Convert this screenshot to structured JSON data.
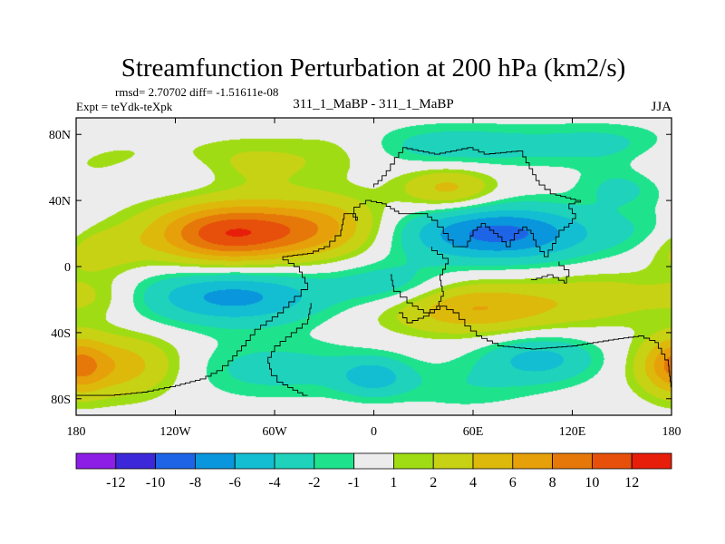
{
  "chart_data": {
    "type": "heatmap",
    "title": "Streamfunction Perturbation at 200 hPa (km2/s)",
    "subtitle_left_line1": "rmsd= 2.70702 diff= -1.51611e-08",
    "subtitle_left_line2": "Expt = teYdk-teXpk",
    "subtitle_center": "311_1_MaBP - 311_1_MaBP",
    "subtitle_right": "JJA",
    "x_ticks": [
      {
        "value": -180,
        "label": "180"
      },
      {
        "value": -120,
        "label": "120W"
      },
      {
        "value": -60,
        "label": "60W"
      },
      {
        "value": 0,
        "label": "0"
      },
      {
        "value": 60,
        "label": "60E"
      },
      {
        "value": 120,
        "label": "120E"
      },
      {
        "value": 180,
        "label": "180"
      }
    ],
    "y_ticks": [
      {
        "value": 80,
        "label": "80N"
      },
      {
        "value": 40,
        "label": "40N"
      },
      {
        "value": 0,
        "label": "0"
      },
      {
        "value": -40,
        "label": "40S"
      },
      {
        "value": -80,
        "label": "80S"
      }
    ],
    "xlim": [
      -180,
      180
    ],
    "ylim": [
      -90,
      90
    ],
    "colorbar": {
      "colors": [
        "#8c1ee6",
        "#3c28d8",
        "#1e64e6",
        "#0a96dc",
        "#14bed2",
        "#1ed2bc",
        "#1ee38c",
        "#ececec",
        "#a0dc14",
        "#c8d214",
        "#dcb90a",
        "#e6a00a",
        "#e6780a",
        "#e6500a",
        "#e61e0a"
      ],
      "labels": [
        "-12",
        "-10",
        "-8",
        "-6",
        "-4",
        "-2",
        "-1",
        "1",
        "2",
        "4",
        "6",
        "8",
        "10",
        "12"
      ]
    },
    "features": [
      {
        "lon": -155,
        "lat": 62,
        "amp": 2.6,
        "sx": 32,
        "sy": 10
      },
      {
        "lon": -130,
        "lat": 57,
        "amp": -2.6,
        "sx": 30,
        "sy": 9
      },
      {
        "lon": -75,
        "lat": 62,
        "amp": 2.6,
        "sx": 30,
        "sy": 11
      },
      {
        "lon": -20,
        "lat": 70,
        "amp": 1.5,
        "sx": 22,
        "sy": 10
      },
      {
        "lon": 50,
        "lat": 73,
        "amp": -3.2,
        "sx": 42,
        "sy": 9
      },
      {
        "lon": 140,
        "lat": 74,
        "amp": -2.4,
        "sx": 32,
        "sy": 9
      },
      {
        "lon": 45,
        "lat": 47,
        "amp": 4.8,
        "sx": 20,
        "sy": 9
      },
      {
        "lon": 150,
        "lat": 48,
        "amp": -2.5,
        "sx": 18,
        "sy": 9
      },
      {
        "lon": -88,
        "lat": 20,
        "amp": 11.5,
        "sx": 33,
        "sy": 13
      },
      {
        "lon": -30,
        "lat": 24,
        "amp": 5.5,
        "sx": 28,
        "sy": 13
      },
      {
        "lon": 75,
        "lat": 20,
        "amp": -8.8,
        "sx": 42,
        "sy": 12
      },
      {
        "lon": 165,
        "lat": 20,
        "amp": -1.2,
        "sx": 18,
        "sy": 10
      },
      {
        "lon": -168,
        "lat": 10,
        "amp": 3.2,
        "sx": 20,
        "sy": 10
      },
      {
        "lon": -168,
        "lat": -18,
        "amp": 2.2,
        "sx": 18,
        "sy": 10
      },
      {
        "lon": -85,
        "lat": -18,
        "amp": -6.8,
        "sx": 40,
        "sy": 12
      },
      {
        "lon": 10,
        "lat": -12,
        "amp": -3.5,
        "sx": 25,
        "sy": 10
      },
      {
        "lon": 60,
        "lat": -25,
        "amp": 6.2,
        "sx": 40,
        "sy": 11
      },
      {
        "lon": 140,
        "lat": -18,
        "amp": 2.5,
        "sx": 28,
        "sy": 11
      },
      {
        "lon": -155,
        "lat": -60,
        "amp": 5.5,
        "sx": 28,
        "sy": 13
      },
      {
        "lon": -60,
        "lat": -62,
        "amp": -2.8,
        "sx": 45,
        "sy": 12
      },
      {
        "lon": 0,
        "lat": -67,
        "amp": -4.2,
        "sx": 15,
        "sy": 8
      },
      {
        "lon": 55,
        "lat": -73,
        "amp": -1.6,
        "sx": 30,
        "sy": 10
      },
      {
        "lon": 100,
        "lat": -56,
        "amp": -4.8,
        "sx": 25,
        "sy": 10
      },
      {
        "lon": 178,
        "lat": -60,
        "amp": 3.0,
        "sx": 14,
        "sy": 12
      },
      {
        "lon": -178,
        "lat": -60,
        "amp": 2.5,
        "sx": 10,
        "sy": 12
      }
    ],
    "outlines": [
      [
        [
          -180,
          -78
        ],
        [
          -160,
          -78
        ],
        [
          -140,
          -76
        ],
        [
          -120,
          -72
        ],
        [
          -105,
          -68
        ],
        [
          -95,
          -63
        ],
        [
          -88,
          -57
        ],
        [
          -80,
          -48
        ],
        [
          -72,
          -38
        ],
        [
          -58,
          -28
        ],
        [
          -48,
          -18
        ],
        [
          -40,
          -10
        ],
        [
          -45,
          0
        ],
        [
          -55,
          6
        ],
        [
          -40,
          8
        ],
        [
          -30,
          12
        ],
        [
          -20,
          22
        ],
        [
          -18,
          32
        ],
        [
          -15,
          32
        ],
        [
          -10,
          28
        ],
        [
          -12,
          36
        ],
        [
          -5,
          40
        ],
        [
          5,
          38
        ],
        [
          10,
          35
        ],
        [
          15,
          32
        ],
        [
          20,
          32
        ],
        [
          30,
          32
        ],
        [
          35,
          28
        ],
        [
          42,
          20
        ],
        [
          48,
          12
        ],
        [
          55,
          12
        ],
        [
          60,
          22
        ],
        [
          65,
          26
        ],
        [
          70,
          22
        ],
        [
          75,
          18
        ],
        [
          80,
          12
        ],
        [
          85,
          20
        ],
        [
          90,
          24
        ],
        [
          95,
          20
        ],
        [
          98,
          12
        ],
        [
          103,
          6
        ],
        [
          108,
          14
        ],
        [
          112,
          22
        ],
        [
          118,
          26
        ],
        [
          122,
          32
        ],
        [
          118,
          38
        ],
        [
          125,
          40
        ],
        [
          110,
          44
        ],
        [
          100,
          52
        ],
        [
          90,
          70
        ],
        [
          70,
          68
        ],
        [
          60,
          72
        ],
        [
          40,
          68
        ],
        [
          30,
          70
        ],
        [
          20,
          72
        ],
        [
          15,
          66
        ],
        [
          10,
          58
        ],
        [
          5,
          52
        ],
        [
          0,
          48
        ]
      ],
      [
        [
          -40,
          -78
        ],
        [
          -55,
          -70
        ],
        [
          -62,
          -62
        ],
        [
          -64,
          -55
        ],
        [
          -60,
          -48
        ],
        [
          -50,
          -40
        ],
        [
          -40,
          -32
        ],
        [
          -38,
          -22
        ]
      ],
      [
        [
          15,
          -28
        ],
        [
          20,
          -34
        ],
        [
          30,
          -30
        ],
        [
          40,
          -24
        ],
        [
          48,
          -28
        ],
        [
          55,
          -36
        ],
        [
          62,
          -42
        ],
        [
          75,
          -48
        ],
        [
          95,
          -50
        ],
        [
          120,
          -48
        ],
        [
          145,
          -44
        ],
        [
          160,
          -42
        ],
        [
          170,
          -46
        ],
        [
          178,
          -60
        ],
        [
          180,
          -76
        ]
      ],
      [
        [
          10,
          -5
        ],
        [
          12,
          -15
        ],
        [
          20,
          -22
        ],
        [
          30,
          -28
        ],
        [
          38,
          -24
        ],
        [
          42,
          -15
        ],
        [
          40,
          -5
        ],
        [
          45,
          5
        ],
        [
          35,
          12
        ]
      ],
      [
        [
          95,
          -8
        ],
        [
          105,
          -5
        ],
        [
          115,
          -10
        ],
        [
          118,
          -2
        ],
        [
          112,
          3
        ]
      ]
    ]
  }
}
